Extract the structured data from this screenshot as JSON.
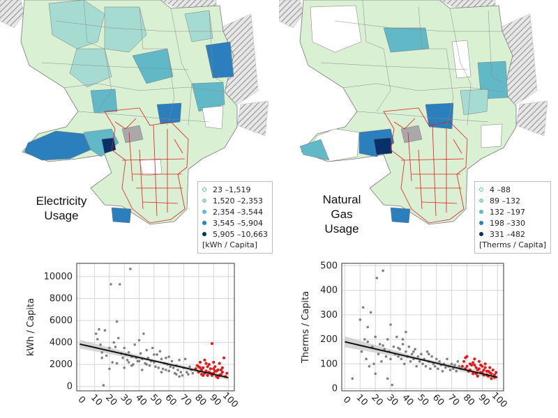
{
  "maps": [
    {
      "title_lines": [
        "Electricity",
        "Usage"
      ],
      "legend": {
        "bins": [
          {
            "label": "23 –1,519",
            "color": "#ffffff"
          },
          {
            "label": "1,520 –2,353",
            "color": "#a6dbd2"
          },
          {
            "label": "2,354 –3,544",
            "color": "#61b8c7"
          },
          {
            "label": "3,545 –5,904",
            "color": "#2b7fbd"
          },
          {
            "label": "5,905 –10,663",
            "color": "#08306b"
          }
        ],
        "unit": "[kWh / Capita]"
      }
    },
    {
      "title_lines": [
        "Natural",
        "Gas",
        "Usage"
      ],
      "legend": {
        "bins": [
          {
            "label": "4 –88",
            "color": "#ffffff"
          },
          {
            "label": "89 –132",
            "color": "#a6dbd2"
          },
          {
            "label": "132 –197",
            "color": "#61b8c7"
          },
          {
            "label": "198 –330",
            "color": "#2b7fbd"
          },
          {
            "label": "331 –482",
            "color": "#08306b"
          }
        ],
        "unit": "[Therms / Capita]"
      }
    }
  ],
  "colors": {
    "light_green": "#d9f0d3",
    "highlight_outline": "#e31a1c",
    "hatched_gray": "#a9a9a9",
    "point_gray": "#808080",
    "point_red": "#e31a1c",
    "fit_line": "#111111",
    "ci_band": "#c8c8c8"
  },
  "chart_data": [
    {
      "type": "scatter",
      "xlabel": "",
      "ylabel": "kWh / Capita",
      "xlim": [
        -2,
        104
      ],
      "ylim": [
        -400,
        11200
      ],
      "xticks": [
        0,
        10,
        20,
        30,
        40,
        50,
        60,
        70,
        80,
        90,
        100
      ],
      "yticks": [
        0,
        2000,
        4000,
        6000,
        8000,
        10000
      ],
      "ytick_labels": [
        "0",
        "2000",
        "4000",
        "6000",
        "8000",
        "10000"
      ],
      "grid": true,
      "fit_line": {
        "x": [
          0,
          100
        ],
        "y": [
          3850,
          800
        ]
      },
      "ci_band": {
        "x": [
          0,
          50,
          100
        ],
        "upper": [
          4250,
          2460,
          1020
        ],
        "lower": [
          3450,
          2200,
          580
        ]
      },
      "series": [
        {
          "color": "gray",
          "points": [
            [
              11,
              4800
            ],
            [
              12,
              4300
            ],
            [
              13,
              5200
            ],
            [
              14,
              3800
            ],
            [
              15,
              2600
            ],
            [
              16,
              100
            ],
            [
              17,
              5100
            ],
            [
              18,
              2800
            ],
            [
              20,
              3500
            ],
            [
              21,
              9300
            ],
            [
              22,
              2200
            ],
            [
              23,
              4000
            ],
            [
              24,
              3600
            ],
            [
              25,
              5900
            ],
            [
              26,
              4400
            ],
            [
              27,
              9300
            ],
            [
              28,
              3000
            ],
            [
              29,
              2600
            ],
            [
              30,
              3500
            ],
            [
              31,
              2900
            ],
            [
              32,
              2400
            ],
            [
              33,
              3100
            ],
            [
              34,
              10700
            ],
            [
              35,
              2700
            ],
            [
              36,
              2000
            ],
            [
              37,
              3800
            ],
            [
              38,
              2600
            ],
            [
              39,
              2300
            ],
            [
              40,
              4200
            ],
            [
              41,
              3000
            ],
            [
              42,
              2500
            ],
            [
              43,
              4800
            ],
            [
              44,
              2100
            ],
            [
              45,
              3300
            ],
            [
              46,
              2600
            ],
            [
              47,
              1900
            ],
            [
              48,
              2300
            ],
            [
              49,
              3500
            ],
            [
              50,
              2200
            ],
            [
              51,
              1800
            ],
            [
              52,
              2900
            ],
            [
              53,
              1700
            ],
            [
              54,
              3200
            ],
            [
              55,
              2500
            ],
            [
              56,
              1600
            ],
            [
              57,
              2100
            ],
            [
              58,
              1500
            ],
            [
              59,
              2000
            ],
            [
              60,
              1400
            ],
            [
              61,
              1800
            ],
            [
              62,
              2300
            ],
            [
              63,
              1700
            ],
            [
              64,
              1200
            ],
            [
              65,
              1900
            ],
            [
              66,
              1500
            ],
            [
              67,
              2400
            ],
            [
              68,
              1300
            ],
            [
              69,
              1000
            ],
            [
              70,
              1700
            ],
            [
              71,
              2500
            ],
            [
              72,
              1300
            ],
            [
              73,
              1100
            ],
            [
              74,
              1800
            ],
            [
              75,
              1500
            ],
            [
              76,
              1200
            ],
            [
              20,
              1600
            ],
            [
              30,
              1700
            ],
            [
              40,
              2300
            ],
            [
              50,
              2900
            ],
            [
              60,
              2700
            ],
            [
              15,
              3100
            ],
            [
              25,
              2100
            ],
            [
              35,
              1900
            ],
            [
              45,
              2000
            ],
            [
              55,
              1300
            ],
            [
              65,
              1100
            ],
            [
              33,
              2200
            ],
            [
              42,
              1500
            ],
            [
              58,
              2600
            ],
            [
              67,
              900
            ]
          ]
        },
        {
          "color": "red",
          "points": [
            [
              78,
              1600
            ],
            [
              79,
              1900
            ],
            [
              80,
              1300
            ],
            [
              81,
              2200
            ],
            [
              82,
              1100
            ],
            [
              83,
              1700
            ],
            [
              84,
              2400
            ],
            [
              85,
              1400
            ],
            [
              86,
              1000
            ],
            [
              87,
              2000
            ],
            [
              88,
              1600
            ],
            [
              89,
              3900
            ],
            [
              90,
              1200
            ],
            [
              91,
              1800
            ],
            [
              92,
              900
            ],
            [
              93,
              1500
            ],
            [
              94,
              2100
            ],
            [
              95,
              1100
            ],
            [
              96,
              1300
            ],
            [
              97,
              2600
            ],
            [
              98,
              900
            ],
            [
              99,
              1200
            ],
            [
              80,
              1800
            ],
            [
              82,
              1500
            ],
            [
              84,
              1200
            ],
            [
              86,
              1800
            ],
            [
              88,
              1200
            ],
            [
              90,
              2200
            ],
            [
              92,
              1400
            ],
            [
              94,
              1000
            ],
            [
              96,
              1700
            ],
            [
              85,
              2100
            ],
            [
              87,
              1300
            ],
            [
              89,
              1000
            ],
            [
              91,
              1400
            ],
            [
              93,
              800
            ],
            [
              95,
              1500
            ],
            [
              81,
              1700
            ],
            [
              83,
              1000
            ],
            [
              90,
              1600
            ]
          ]
        }
      ]
    },
    {
      "type": "scatter",
      "xlabel": "",
      "ylabel": "Therms / Capita",
      "xlim": [
        -2,
        104
      ],
      "ylim": [
        -10,
        510
      ],
      "xticks": [
        0,
        10,
        20,
        30,
        40,
        50,
        60,
        70,
        80,
        90,
        100
      ],
      "yticks": [
        0,
        100,
        200,
        300,
        400,
        500
      ],
      "ytick_labels": [
        "0",
        "100",
        "200",
        "300",
        "400",
        "500"
      ],
      "grid": true,
      "fit_line": {
        "x": [
          0,
          100
        ],
        "y": [
          190,
          45
        ]
      },
      "ci_band": {
        "x": [
          0,
          50,
          100
        ],
        "upper": [
          212,
          124,
          58
        ],
        "lower": [
          168,
          112,
          32
        ]
      },
      "series": [
        {
          "color": "gray",
          "points": [
            [
              5,
              40
            ],
            [
              10,
              280
            ],
            [
              11,
              150
            ],
            [
              12,
              330
            ],
            [
              13,
              200
            ],
            [
              14,
              120
            ],
            [
              15,
              250
            ],
            [
              16,
              90
            ],
            [
              17,
              310
            ],
            [
              18,
              170
            ],
            [
              19,
              100
            ],
            [
              20,
              210
            ],
            [
              21,
              450
            ],
            [
              22,
              140
            ],
            [
              23,
              180
            ],
            [
              24,
              110
            ],
            [
              25,
              480
            ],
            [
              26,
              160
            ],
            [
              27,
              130
            ],
            [
              28,
              200
            ],
            [
              29,
              150
            ],
            [
              30,
              120
            ],
            [
              31,
              14
            ],
            [
              32,
              170
            ],
            [
              33,
              140
            ],
            [
              34,
              210
            ],
            [
              35,
              130
            ],
            [
              36,
              160
            ],
            [
              37,
              120
            ],
            [
              38,
              180
            ],
            [
              39,
              100
            ],
            [
              40,
              150
            ],
            [
              41,
              130
            ],
            [
              42,
              170
            ],
            [
              43,
              110
            ],
            [
              44,
              140
            ],
            [
              45,
              120
            ],
            [
              46,
              160
            ],
            [
              47,
              90
            ],
            [
              48,
              130
            ],
            [
              49,
              110
            ],
            [
              50,
              140
            ],
            [
              51,
              100
            ],
            [
              52,
              120
            ],
            [
              53,
              90
            ],
            [
              54,
              150
            ],
            [
              55,
              110
            ],
            [
              56,
              80
            ],
            [
              57,
              130
            ],
            [
              58,
              100
            ],
            [
              59,
              90
            ],
            [
              60,
              120
            ],
            [
              61,
              80
            ],
            [
              62,
              110
            ],
            [
              63,
              95
            ],
            [
              64,
              70
            ],
            [
              65,
              100
            ],
            [
              66,
              85
            ],
            [
              67,
              120
            ],
            [
              68,
              90
            ],
            [
              69,
              75
            ],
            [
              70,
              100
            ],
            [
              71,
              80
            ],
            [
              72,
              95
            ],
            [
              73,
              70
            ],
            [
              74,
              110
            ],
            [
              75,
              90
            ],
            [
              76,
              80
            ],
            [
              15,
              190
            ],
            [
              25,
              175
            ],
            [
              35,
              165
            ],
            [
              45,
              150
            ],
            [
              55,
              140
            ],
            [
              30,
              260
            ],
            [
              40,
              230
            ],
            [
              20,
              60
            ],
            [
              28,
              40
            ],
            [
              38,
              200
            ]
          ]
        },
        {
          "color": "red",
          "points": [
            [
              77,
              90
            ],
            [
              78,
              110
            ],
            [
              79,
              80
            ],
            [
              80,
              130
            ],
            [
              81,
              70
            ],
            [
              82,
              100
            ],
            [
              83,
              95
            ],
            [
              84,
              60
            ],
            [
              85,
              120
            ],
            [
              86,
              85
            ],
            [
              87,
              75
            ],
            [
              88,
              110
            ],
            [
              89,
              65
            ],
            [
              90,
              90
            ],
            [
              91,
              55
            ],
            [
              92,
              100
            ],
            [
              93,
              70
            ],
            [
              94,
              50
            ],
            [
              95,
              85
            ],
            [
              96,
              60
            ],
            [
              97,
              75
            ],
            [
              98,
              45
            ],
            [
              99,
              65
            ],
            [
              80,
              90
            ],
            [
              82,
              75
            ],
            [
              84,
              105
            ],
            [
              86,
              60
            ],
            [
              88,
              80
            ],
            [
              90,
              65
            ],
            [
              92,
              85
            ],
            [
              94,
              70
            ],
            [
              96,
              40
            ],
            [
              98,
              55
            ],
            [
              85,
              95
            ],
            [
              87,
              50
            ],
            [
              89,
              95
            ],
            [
              91,
              75
            ],
            [
              93,
              55
            ],
            [
              95,
              65
            ],
            [
              79,
              125
            ]
          ]
        }
      ]
    }
  ]
}
